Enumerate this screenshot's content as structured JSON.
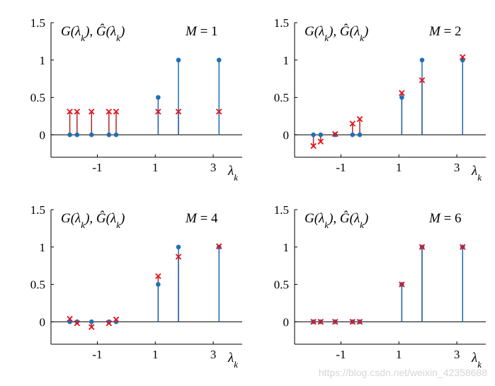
{
  "colors": {
    "true": "#1f6fb5",
    "approx": "#e8101a",
    "stem_approx": "#b0262a",
    "axis": "#000000"
  },
  "watermark": "https://blog.csdn.net/weixin_42358688",
  "chart_data": [
    {
      "type": "stem",
      "panel_label": "G(λ_k), Ĝ(λ_k)",
      "annotation": "M = 1",
      "xlabel": "λ_k",
      "xticks": [
        "-1",
        "1",
        "3"
      ],
      "yticks": [
        "0",
        "0.5",
        "1",
        "1.5"
      ],
      "ylim": [
        -0.3,
        1.5
      ],
      "x": [
        -1.95,
        -1.7,
        -1.2,
        -0.6,
        -0.35,
        1.1,
        1.8,
        3.2
      ],
      "series": [
        {
          "values": [
            0,
            0,
            0,
            0,
            0,
            0.5,
            1.0,
            1.0
          ]
        },
        {
          "values": [
            0.31,
            0.31,
            0.31,
            0.31,
            0.31,
            0.31,
            0.31,
            0.31
          ]
        }
      ]
    },
    {
      "type": "stem",
      "panel_label": "G(λ_k), Ĝ(λ_k)",
      "annotation": "M = 2",
      "xlabel": "λ_k",
      "xticks": [
        "-1",
        "1",
        "3"
      ],
      "yticks": [
        "0",
        "0.5",
        "1",
        "1.5"
      ],
      "ylim": [
        -0.3,
        1.5
      ],
      "x": [
        -1.95,
        -1.7,
        -1.2,
        -0.6,
        -0.35,
        1.1,
        1.8,
        3.2
      ],
      "series": [
        {
          "values": [
            0,
            0,
            0,
            0,
            0,
            0.5,
            1.0,
            1.0
          ]
        },
        {
          "values": [
            -0.15,
            -0.09,
            0.01,
            0.15,
            0.21,
            0.56,
            0.73,
            1.04
          ]
        }
      ]
    },
    {
      "type": "stem",
      "panel_label": "G(λ_k), Ĝ(λ_k)",
      "annotation": "M = 4",
      "xlabel": "λ_k",
      "xticks": [
        "-1",
        "1",
        "3"
      ],
      "yticks": [
        "0",
        "0.5",
        "1",
        "1.5"
      ],
      "ylim": [
        -0.3,
        1.5
      ],
      "x": [
        -1.95,
        -1.7,
        -1.2,
        -0.6,
        -0.35,
        1.1,
        1.8,
        3.2
      ],
      "series": [
        {
          "values": [
            0,
            0,
            0,
            0,
            0,
            0.5,
            1.0,
            1.0
          ]
        },
        {
          "values": [
            0.04,
            -0.02,
            -0.07,
            -0.02,
            0.03,
            0.61,
            0.87,
            1.01
          ]
        }
      ]
    },
    {
      "type": "stem",
      "panel_label": "G(λ_k), Ĝ(λ_k)",
      "annotation": "M = 6",
      "xlabel": "λ_k",
      "xticks": [
        "-1",
        "1",
        "3"
      ],
      "yticks": [
        "0",
        "0.5",
        "1",
        "1.5"
      ],
      "ylim": [
        -0.3,
        1.5
      ],
      "x": [
        -1.95,
        -1.7,
        -1.2,
        -0.6,
        -0.35,
        1.1,
        1.8,
        3.2
      ],
      "series": [
        {
          "values": [
            0,
            0,
            0,
            0,
            0,
            0.5,
            1.0,
            1.0
          ]
        },
        {
          "values": [
            0,
            0,
            0,
            0,
            0,
            0.5,
            1.0,
            1.0
          ]
        }
      ]
    }
  ]
}
